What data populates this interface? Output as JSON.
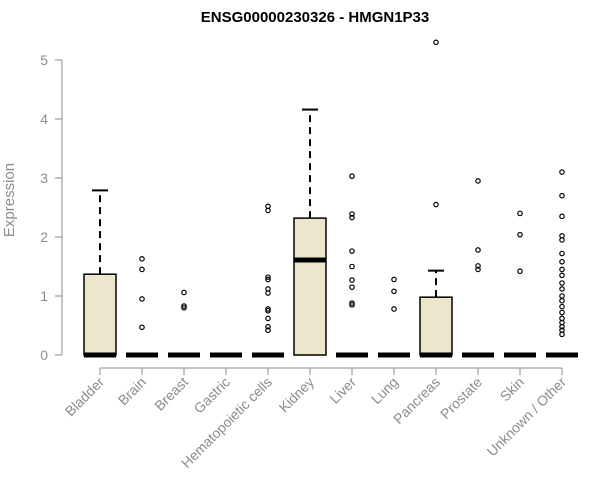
{
  "chart_data": {
    "type": "boxplot",
    "title": "ENSG00000230326 - HMGN1P33",
    "xlabel": "",
    "ylabel": "Expression",
    "ylim": [
      0,
      5.3
    ],
    "yticks": [
      0,
      1,
      2,
      3,
      4,
      5
    ],
    "ytick_labels": [
      "0",
      "1",
      "2",
      "3",
      "4",
      "5"
    ],
    "grid": false,
    "legend": "none",
    "colors": {
      "box_fill": "#ede6cc",
      "stroke": "#000000",
      "axis": "#8c8c8c",
      "tick_label": "#8c8c8c"
    },
    "categories": [
      "Bladder",
      "Brain",
      "Breast",
      "Gastric",
      "Hematopoietic cells",
      "Kidney",
      "Liver",
      "Lung",
      "Pancreas",
      "Prostate",
      "Skin",
      "Unknown / Other"
    ],
    "boxes": [
      {
        "q1": 0,
        "median": 0,
        "q3": 1.37,
        "whisker_low": 0,
        "whisker_high": 2.79,
        "outliers": []
      },
      {
        "q1": 0,
        "median": 0,
        "q3": 0,
        "whisker_low": 0,
        "whisker_high": 0,
        "outliers": [
          0.47,
          0.95,
          1.45,
          1.63
        ]
      },
      {
        "q1": 0,
        "median": 0,
        "q3": 0,
        "whisker_low": 0,
        "whisker_high": 0,
        "outliers": [
          0.8,
          0.83,
          1.06
        ]
      },
      {
        "q1": 0,
        "median": 0,
        "q3": 0,
        "whisker_low": 0,
        "whisker_high": 0,
        "outliers": []
      },
      {
        "q1": 0,
        "median": 0,
        "q3": 0,
        "whisker_low": 0,
        "whisker_high": 0,
        "outliers": [
          0.42,
          0.48,
          0.62,
          0.75,
          0.78,
          1.05,
          1.12,
          1.28,
          1.32,
          2.45,
          2.52
        ]
      },
      {
        "q1": 0,
        "median": 1.61,
        "q3": 2.32,
        "whisker_low": 0,
        "whisker_high": 4.16,
        "outliers": []
      },
      {
        "q1": 0,
        "median": 0,
        "q3": 0,
        "whisker_low": 0,
        "whisker_high": 0,
        "outliers": [
          0.85,
          0.88,
          1.15,
          1.27,
          1.5,
          1.76,
          2.33,
          2.39,
          3.03
        ]
      },
      {
        "q1": 0,
        "median": 0,
        "q3": 0,
        "whisker_low": 0,
        "whisker_high": 0,
        "outliers": [
          0.78,
          1.08,
          1.28
        ]
      },
      {
        "q1": 0,
        "median": 0,
        "q3": 0.98,
        "whisker_low": 0,
        "whisker_high": 1.43,
        "outliers": [
          2.55,
          5.3
        ]
      },
      {
        "q1": 0,
        "median": 0,
        "q3": 0,
        "whisker_low": 0,
        "whisker_high": 0,
        "outliers": [
          1.45,
          1.51,
          1.78,
          2.95
        ]
      },
      {
        "q1": 0,
        "median": 0,
        "q3": 0,
        "whisker_low": 0,
        "whisker_high": 0,
        "outliers": [
          1.42,
          2.04,
          2.4
        ]
      },
      {
        "q1": 0,
        "median": 0,
        "q3": 0,
        "whisker_low": 0,
        "whisker_high": 0,
        "outliers": [
          0.35,
          0.42,
          0.48,
          0.55,
          0.62,
          0.72,
          0.82,
          0.92,
          1.0,
          1.12,
          1.22,
          1.35,
          1.45,
          1.58,
          1.72,
          1.95,
          2.02,
          2.35,
          2.7,
          3.1
        ]
      }
    ]
  }
}
